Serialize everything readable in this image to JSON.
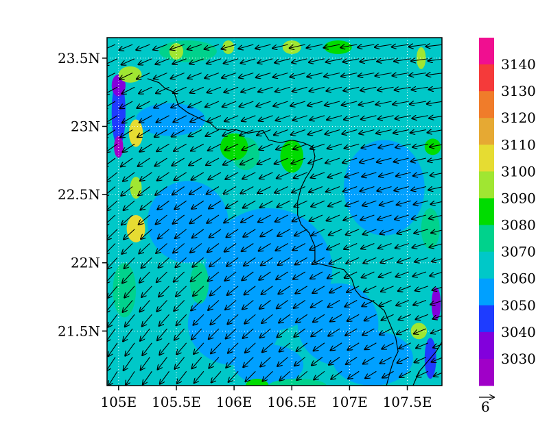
{
  "map": {
    "lat_range": [
      21.1,
      23.65
    ],
    "lon_range": [
      104.9,
      107.8
    ],
    "y_ticks": [
      {
        "value": 23.5,
        "label": "23.5N"
      },
      {
        "value": 23.0,
        "label": "23N"
      },
      {
        "value": 22.5,
        "label": "22.5N"
      },
      {
        "value": 22.0,
        "label": "22N"
      },
      {
        "value": 21.5,
        "label": "21.5N"
      }
    ],
    "x_ticks": [
      {
        "value": 105.0,
        "label": "105E"
      },
      {
        "value": 105.5,
        "label": "105.5E"
      },
      {
        "value": 106.0,
        "label": "106E"
      },
      {
        "value": 106.5,
        "label": "106.5E"
      },
      {
        "value": 107.0,
        "label": "107E"
      },
      {
        "value": 107.5,
        "label": "107.5E"
      }
    ],
    "gridlines": "dotted",
    "background_level": "3070",
    "border_path_lonlat": [
      [
        105.25,
        23.35
      ],
      [
        105.35,
        23.32
      ],
      [
        105.4,
        23.28
      ],
      [
        105.48,
        23.25
      ],
      [
        105.52,
        23.15
      ],
      [
        105.6,
        23.1
      ],
      [
        105.72,
        23.05
      ],
      [
        105.8,
        23.02
      ],
      [
        105.85,
        22.98
      ],
      [
        105.9,
        22.98
      ],
      [
        105.95,
        22.97
      ],
      [
        106.0,
        22.98
      ],
      [
        106.12,
        22.95
      ],
      [
        106.25,
        22.97
      ],
      [
        106.3,
        22.9
      ],
      [
        106.4,
        22.88
      ],
      [
        106.5,
        22.9
      ],
      [
        106.6,
        22.88
      ],
      [
        106.68,
        22.85
      ],
      [
        106.7,
        22.78
      ],
      [
        106.68,
        22.7
      ],
      [
        106.62,
        22.62
      ],
      [
        106.58,
        22.55
      ],
      [
        106.55,
        22.45
      ],
      [
        106.55,
        22.35
      ],
      [
        106.58,
        22.28
      ],
      [
        106.65,
        22.22
      ],
      [
        106.7,
        22.12
      ],
      [
        106.7,
        22.0
      ],
      [
        106.8,
        21.98
      ],
      [
        106.95,
        21.95
      ],
      [
        107.02,
        21.88
      ],
      [
        107.05,
        21.8
      ],
      [
        107.1,
        21.75
      ],
      [
        107.2,
        21.72
      ],
      [
        107.3,
        21.65
      ],
      [
        107.35,
        21.55
      ],
      [
        107.4,
        21.45
      ],
      [
        107.42,
        21.35
      ],
      [
        107.38,
        21.28
      ],
      [
        107.35,
        21.2
      ],
      [
        107.32,
        21.1
      ]
    ],
    "border_path2_lonlat": [
      [
        107.55,
        21.1
      ],
      [
        107.6,
        21.2
      ],
      [
        107.68,
        21.28
      ],
      [
        107.75,
        21.35
      ],
      [
        107.8,
        21.42
      ]
    ],
    "wind_vector": {
      "u": -4.4,
      "v": -1.6,
      "ref_magnitude": 6,
      "ref_label": "6"
    },
    "contour_patches": [
      {
        "level": "3060",
        "lon": 106.3,
        "lat": 21.95,
        "rx": 0.55,
        "ry": 0.45
      },
      {
        "level": "3060",
        "lon": 106.0,
        "lat": 21.55,
        "rx": 0.4,
        "ry": 0.3
      },
      {
        "level": "3060",
        "lon": 106.9,
        "lat": 21.55,
        "rx": 0.35,
        "ry": 0.3
      },
      {
        "level": "3060",
        "lon": 107.3,
        "lat": 22.55,
        "rx": 0.35,
        "ry": 0.35
      },
      {
        "level": "3060",
        "lon": 105.6,
        "lat": 22.3,
        "rx": 0.35,
        "ry": 0.3
      },
      {
        "level": "3060",
        "lon": 106.3,
        "lat": 21.25,
        "rx": 0.3,
        "ry": 0.15
      },
      {
        "level": "3060",
        "lon": 107.2,
        "lat": 21.3,
        "rx": 0.35,
        "ry": 0.2
      },
      {
        "level": "3060",
        "lon": 105.45,
        "lat": 23.05,
        "rx": 0.3,
        "ry": 0.12
      },
      {
        "level": "3080",
        "lon": 105.05,
        "lat": 21.8,
        "rx": 0.1,
        "ry": 0.2
      },
      {
        "level": "3080",
        "lon": 105.7,
        "lat": 21.85,
        "rx": 0.08,
        "ry": 0.15
      },
      {
        "level": "3080",
        "lon": 106.1,
        "lat": 22.8,
        "rx": 0.12,
        "ry": 0.12
      },
      {
        "level": "3080",
        "lon": 105.6,
        "lat": 23.55,
        "rx": 0.25,
        "ry": 0.08
      },
      {
        "level": "3080",
        "lon": 107.7,
        "lat": 22.25,
        "rx": 0.08,
        "ry": 0.15
      },
      {
        "level": "3080",
        "lon": 106.55,
        "lat": 21.1,
        "rx": 0.25,
        "ry": 0.05
      },
      {
        "level": "3050",
        "lon": 105.0,
        "lat": 23.1,
        "rx": 0.06,
        "ry": 0.25
      },
      {
        "level": "3040",
        "lon": 105.0,
        "lat": 23.3,
        "rx": 0.06,
        "ry": 0.08
      },
      {
        "level": "3030",
        "lon": 105.0,
        "lat": 22.85,
        "rx": 0.04,
        "ry": 0.08
      },
      {
        "level": "3040",
        "lon": 107.75,
        "lat": 21.7,
        "rx": 0.04,
        "ry": 0.12
      },
      {
        "level": "3050",
        "lon": 107.7,
        "lat": 21.3,
        "rx": 0.05,
        "ry": 0.15
      },
      {
        "level": "3090",
        "lon": 106.0,
        "lat": 22.85,
        "rx": 0.12,
        "ry": 0.1
      },
      {
        "level": "3090",
        "lon": 106.9,
        "lat": 23.58,
        "rx": 0.12,
        "ry": 0.05
      },
      {
        "level": "3090",
        "lon": 106.2,
        "lat": 21.1,
        "rx": 0.1,
        "ry": 0.05
      },
      {
        "level": "3100",
        "lon": 105.1,
        "lat": 23.38,
        "rx": 0.1,
        "ry": 0.06
      },
      {
        "level": "3110",
        "lon": 105.15,
        "lat": 22.95,
        "rx": 0.06,
        "ry": 0.1
      },
      {
        "level": "3100",
        "lon": 105.15,
        "lat": 22.55,
        "rx": 0.05,
        "ry": 0.08
      },
      {
        "level": "3110",
        "lon": 105.15,
        "lat": 22.25,
        "rx": 0.08,
        "ry": 0.1
      },
      {
        "level": "3100",
        "lon": 105.5,
        "lat": 23.55,
        "rx": 0.06,
        "ry": 0.06
      },
      {
        "level": "3100",
        "lon": 105.95,
        "lat": 23.58,
        "rx": 0.05,
        "ry": 0.05
      },
      {
        "level": "3100",
        "lon": 106.5,
        "lat": 23.58,
        "rx": 0.08,
        "ry": 0.05
      },
      {
        "level": "3100",
        "lon": 107.6,
        "lat": 21.5,
        "rx": 0.07,
        "ry": 0.06
      },
      {
        "level": "3090",
        "lon": 107.72,
        "lat": 22.85,
        "rx": 0.07,
        "ry": 0.06
      },
      {
        "level": "3100",
        "lon": 107.62,
        "lat": 23.5,
        "rx": 0.04,
        "ry": 0.08
      },
      {
        "level": "3090",
        "lon": 106.5,
        "lat": 22.78,
        "rx": 0.1,
        "ry": 0.12
      }
    ]
  },
  "colorbar": {
    "labels": [
      "3140",
      "3130",
      "3120",
      "3110",
      "3100",
      "3090",
      "3080",
      "3070",
      "3060",
      "3050",
      "3040",
      "3030"
    ],
    "colors": [
      "#f00f90",
      "#f53a3a",
      "#f07c2a",
      "#e6a933",
      "#e6dc32",
      "#a0e632",
      "#00dc00",
      "#00d28c",
      "#00c8c8",
      "#00a0ff",
      "#1e3cff",
      "#8200dc",
      "#a000c8"
    ],
    "colors_order": "top_to_bottom"
  }
}
